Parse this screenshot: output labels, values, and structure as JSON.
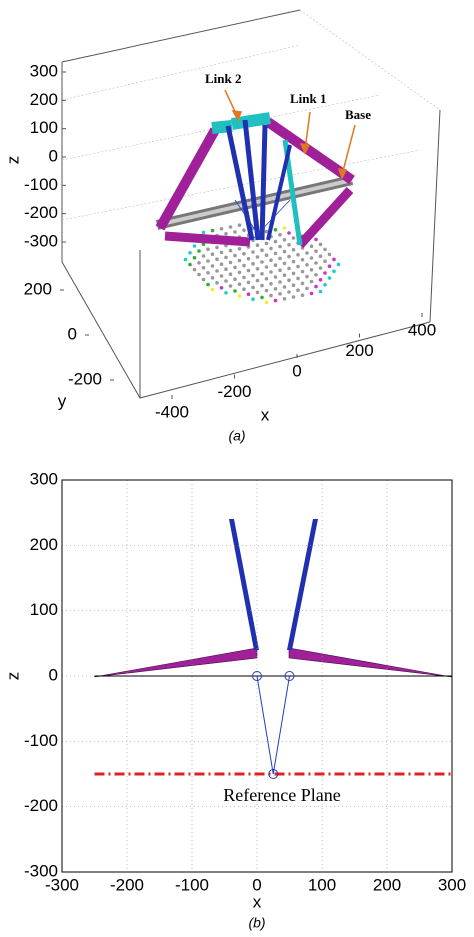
{
  "chart_data": [
    {
      "type": "scatter3d",
      "caption": "(a)",
      "xlabel": "x",
      "ylabel": "y",
      "zlabel": "z",
      "xlim": [
        -400,
        400
      ],
      "xticks": [
        -400,
        -200,
        0,
        200,
        400
      ],
      "ylim": [
        -200,
        200
      ],
      "yticks": [
        200,
        0,
        -200
      ],
      "zlim": [
        -300,
        300
      ],
      "zticks": [
        300,
        200,
        100,
        0,
        -100,
        -200,
        -300
      ],
      "annotations": [
        "Link 2",
        "Link 1",
        "Base"
      ]
    },
    {
      "type": "line",
      "caption": "(b)",
      "xlabel": "x",
      "ylabel": "z",
      "xlim": [
        -300,
        300
      ],
      "xticks": [
        -300,
        -200,
        -100,
        0,
        100,
        200,
        300
      ],
      "ylim": [
        -300,
        300
      ],
      "yticks": [
        -300,
        -200,
        -100,
        0,
        100,
        200,
        300
      ],
      "grid": true,
      "annotations": [
        "Reference Plane"
      ],
      "series": [
        {
          "color": "#000000",
          "x": [
            -250,
            300
          ],
          "values": [
            0,
            0
          ]
        },
        {
          "color": "#e02020",
          "dash": "dashdot",
          "x": [
            -250,
            300
          ],
          "values": [
            -150,
            -150
          ]
        },
        {
          "color": "#2040c0",
          "marker": "circle",
          "x": [
            0,
            25,
            50
          ],
          "values": [
            0,
            -150,
            0
          ]
        }
      ]
    }
  ]
}
